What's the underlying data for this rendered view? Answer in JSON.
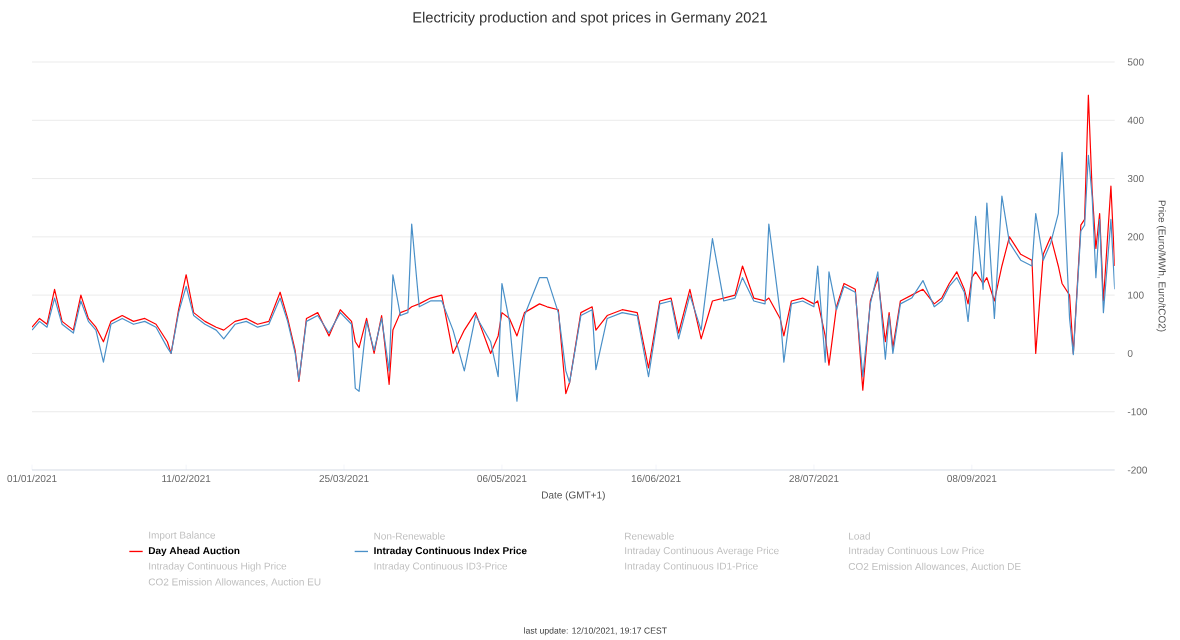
{
  "chart_data": {
    "type": "line",
    "title": "Electricity production and spot prices in Germany 2021",
    "xlabel": "Date (GMT+1)",
    "ylabel": "Price (Euro/MWh, Euro/tCO2)",
    "x": [
      "2021-01-01",
      "2021-01-03",
      "2021-01-05",
      "2021-01-07",
      "2021-01-09",
      "2021-01-12",
      "2021-01-14",
      "2021-01-16",
      "2021-01-18",
      "2021-01-20",
      "2021-01-22",
      "2021-01-25",
      "2021-01-28",
      "2021-01-31",
      "2021-02-03",
      "2021-02-06",
      "2021-02-07",
      "2021-02-09",
      "2021-02-11",
      "2021-02-13",
      "2021-02-16",
      "2021-02-19",
      "2021-02-21",
      "2021-02-24",
      "2021-02-27",
      "2021-03-02",
      "2021-03-05",
      "2021-03-08",
      "2021-03-10",
      "2021-03-12",
      "2021-03-13",
      "2021-03-15",
      "2021-03-18",
      "2021-03-21",
      "2021-03-24",
      "2021-03-27",
      "2021-03-28",
      "2021-03-29",
      "2021-03-31",
      "2021-04-02",
      "2021-04-04",
      "2021-04-06",
      "2021-04-07",
      "2021-04-09",
      "2021-04-11",
      "2021-04-12",
      "2021-04-14",
      "2021-04-17",
      "2021-04-20",
      "2021-04-23",
      "2021-04-26",
      "2021-04-29",
      "2021-05-03",
      "2021-05-05",
      "2021-05-06",
      "2021-05-08",
      "2021-05-10",
      "2021-05-12",
      "2021-05-16",
      "2021-05-18",
      "2021-05-21",
      "2021-05-23",
      "2021-05-24",
      "2021-05-27",
      "2021-05-30",
      "2021-05-31",
      "2021-06-03",
      "2021-06-07",
      "2021-06-11",
      "2021-06-14",
      "2021-06-17",
      "2021-06-20",
      "2021-06-22",
      "2021-06-25",
      "2021-06-28",
      "2021-07-01",
      "2021-07-04",
      "2021-07-07",
      "2021-07-09",
      "2021-07-12",
      "2021-07-15",
      "2021-07-16",
      "2021-07-19",
      "2021-07-20",
      "2021-07-22",
      "2021-07-25",
      "2021-07-28",
      "2021-07-29",
      "2021-07-31",
      "2021-08-01",
      "2021-08-03",
      "2021-08-05",
      "2021-08-08",
      "2021-08-10",
      "2021-08-12",
      "2021-08-14",
      "2021-08-16",
      "2021-08-17",
      "2021-08-18",
      "2021-08-20",
      "2021-08-23",
      "2021-08-26",
      "2021-08-29",
      "2021-08-31",
      "2021-09-02",
      "2021-09-04",
      "2021-09-06",
      "2021-09-07",
      "2021-09-08",
      "2021-09-09",
      "2021-09-11",
      "2021-09-12",
      "2021-09-14",
      "2021-09-16",
      "2021-09-18",
      "2021-09-21",
      "2021-09-24",
      "2021-09-25",
      "2021-09-27",
      "2021-09-29",
      "2021-10-01",
      "2021-10-02",
      "2021-10-04",
      "2021-10-05",
      "2021-10-07",
      "2021-10-08",
      "2021-10-09",
      "2021-10-10",
      "2021-10-11",
      "2021-10-12",
      "2021-10-13",
      "2021-10-15",
      "2021-10-16"
    ],
    "series": [
      {
        "name": "Day Ahead Auction",
        "color": "#ff0000",
        "values": [
          45,
          60,
          50,
          110,
          55,
          40,
          100,
          60,
          45,
          20,
          55,
          65,
          55,
          60,
          50,
          20,
          0,
          75,
          135,
          70,
          55,
          45,
          40,
          55,
          60,
          50,
          55,
          105,
          60,
          5,
          -48,
          60,
          70,
          30,
          75,
          55,
          20,
          10,
          60,
          0,
          65,
          -53,
          40,
          70,
          75,
          80,
          85,
          95,
          100,
          0,
          40,
          70,
          0,
          30,
          70,
          60,
          30,
          70,
          85,
          80,
          75,
          -69,
          -50,
          70,
          80,
          40,
          65,
          75,
          70,
          -25,
          90,
          95,
          35,
          110,
          25,
          90,
          95,
          100,
          150,
          95,
          90,
          95,
          60,
          30,
          90,
          95,
          85,
          90,
          30,
          -20,
          80,
          120,
          110,
          -63,
          90,
          130,
          20,
          70,
          10,
          90,
          100,
          110,
          85,
          95,
          120,
          140,
          110,
          85,
          130,
          140,
          120,
          130,
          90,
          150,
          200,
          170,
          160,
          0,
          170,
          200,
          150,
          120,
          100,
          0,
          220,
          230,
          443,
          280,
          180,
          240,
          90,
          287,
          150
        ]
      },
      {
        "name": "Intraday Continuous Index Price",
        "color": "#4a90c8",
        "values": [
          40,
          55,
          45,
          95,
          50,
          35,
          90,
          55,
          40,
          -15,
          50,
          60,
          50,
          55,
          45,
          10,
          0,
          70,
          115,
          65,
          50,
          40,
          25,
          50,
          55,
          45,
          50,
          95,
          55,
          0,
          -45,
          55,
          65,
          35,
          70,
          50,
          -60,
          -65,
          55,
          5,
          60,
          -30,
          135,
          65,
          70,
          222,
          80,
          90,
          90,
          40,
          -30,
          65,
          20,
          -40,
          120,
          55,
          -82,
          65,
          130,
          130,
          70,
          -30,
          -50,
          65,
          75,
          -28,
          60,
          70,
          65,
          -40,
          85,
          90,
          25,
          100,
          40,
          197,
          90,
          95,
          130,
          90,
          85,
          222,
          70,
          -15,
          85,
          90,
          80,
          150,
          -15,
          140,
          75,
          115,
          105,
          -40,
          85,
          140,
          -10,
          65,
          0,
          85,
          95,
          125,
          80,
          90,
          115,
          130,
          105,
          55,
          125,
          235,
          110,
          258,
          60,
          270,
          190,
          160,
          150,
          240,
          160,
          190,
          240,
          345,
          60,
          -2,
          210,
          220,
          340,
          270,
          130,
          230,
          70,
          230,
          110
        ]
      }
    ],
    "xlim": [
      "2021-01-01",
      "2021-10-16"
    ],
    "xticks": [
      {
        "value": "2021-01-01",
        "label": "01/01/2021"
      },
      {
        "value": "2021-02-11",
        "label": "11/02/2021"
      },
      {
        "value": "2021-03-25",
        "label": "25/03/2021"
      },
      {
        "value": "2021-05-06",
        "label": "06/05/2021"
      },
      {
        "value": "2021-06-16",
        "label": "16/06/2021"
      },
      {
        "value": "2021-07-28",
        "label": "28/07/2021"
      },
      {
        "value": "2021-09-08",
        "label": "08/09/2021"
      }
    ],
    "ylim": [
      -200,
      500
    ],
    "yticks": [
      -200,
      -100,
      0,
      100,
      200,
      300,
      400,
      500
    ],
    "grid": "y",
    "legend": "bottom",
    "annotations": [
      "Import Balance",
      "Non-Renewable",
      "Renewable",
      "Load",
      "Intraday Continuous Average Price",
      "Intraday Continuous Low Price",
      "Intraday Continuous High Price",
      "Intraday Continuous ID3-Price",
      "Intraday Continuous ID1-Price",
      "CO2 Emission Allowances, Auction DE",
      "CO2 Emission Allowances, Auction EU",
      "last update: 12/10/2021, 19:17 CEST"
    ]
  }
}
